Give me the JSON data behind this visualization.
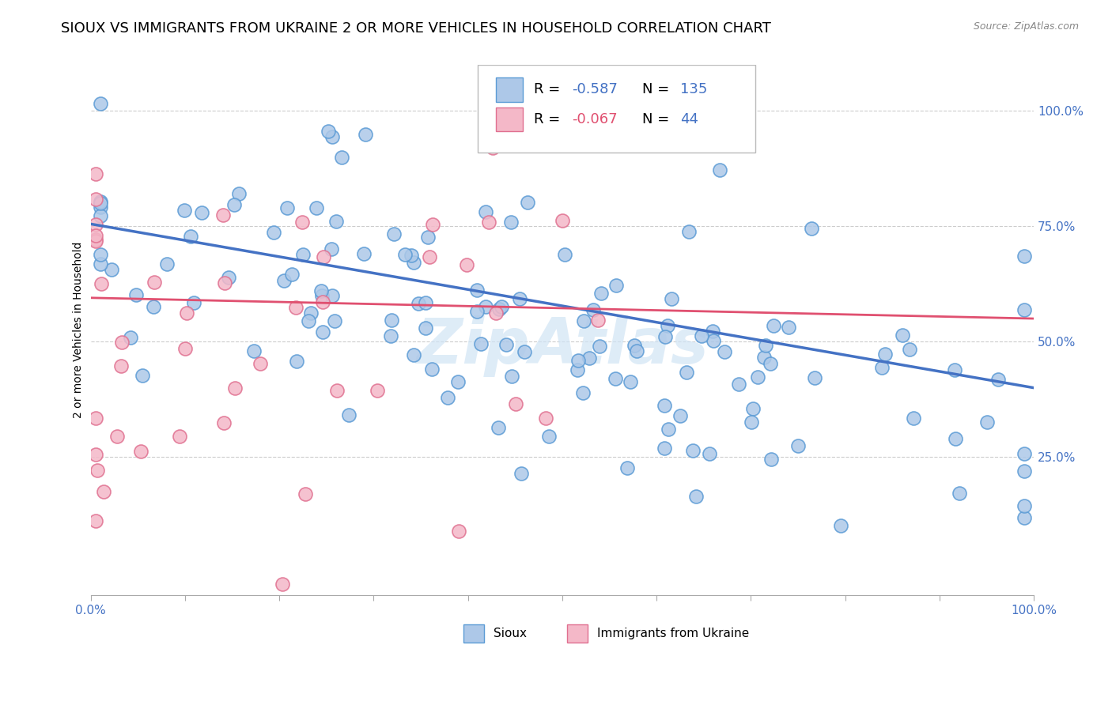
{
  "title": "SIOUX VS IMMIGRANTS FROM UKRAINE 2 OR MORE VEHICLES IN HOUSEHOLD CORRELATION CHART",
  "source": "Source: ZipAtlas.com",
  "ylabel": "2 or more Vehicles in Household",
  "sioux_R": -0.587,
  "sioux_N": 135,
  "ukraine_R": -0.067,
  "ukraine_N": 44,
  "sioux_color": "#adc8e8",
  "sioux_edge_color": "#5b9bd5",
  "sioux_line_color": "#4472c4",
  "ukraine_color": "#f4b8c8",
  "ukraine_edge_color": "#e07090",
  "ukraine_line_color": "#e05070",
  "legend_val_blue": "#4472c4",
  "legend_val_pink": "#e05070",
  "background_color": "#ffffff",
  "watermark_color": "#d0e4f5",
  "xlim": [
    0.0,
    1.0
  ],
  "ylim": [
    -0.05,
    1.1
  ],
  "yticks": [
    0.25,
    0.5,
    0.75,
    1.0
  ],
  "ytick_labels": [
    "25.0%",
    "50.0%",
    "75.0%",
    "100.0%"
  ],
  "xticks": [
    0.0,
    0.1,
    0.2,
    0.3,
    0.4,
    0.5,
    0.6,
    0.7,
    0.8,
    0.9,
    1.0
  ],
  "xtick_labels": [
    "0.0%",
    "",
    "",
    "",
    "",
    "",
    "",
    "",
    "",
    "",
    "100.0%"
  ],
  "title_fontsize": 13,
  "axis_label_fontsize": 10,
  "tick_fontsize": 11,
  "legend_fontsize": 13,
  "sioux_line_intercept": 0.755,
  "sioux_line_slope": -0.355,
  "ukraine_line_intercept": 0.595,
  "ukraine_line_slope": -0.045
}
